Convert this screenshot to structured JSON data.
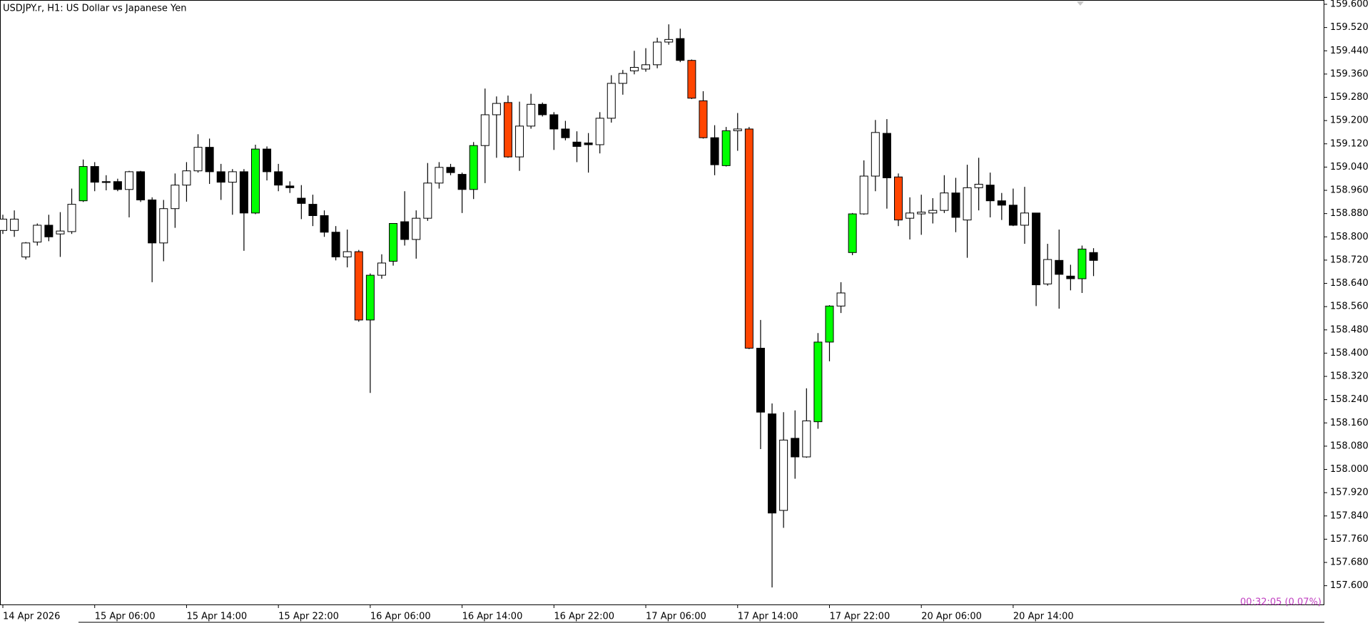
{
  "chart_data": {
    "type": "candlestick",
    "title": "USDJPY.r, H1:  US Dollar vs Japanese Yen",
    "annotation": "00:32:05 (0.07%)",
    "annotation_color": "#c040c0",
    "categories": [
      "14 Apr 2026",
      null,
      null,
      null,
      null,
      null,
      null,
      null,
      "15 Apr 06:00",
      null,
      null,
      null,
      null,
      null,
      null,
      null,
      "15 Apr 14:00",
      null,
      null,
      null,
      null,
      null,
      null,
      null,
      "15 Apr 22:00",
      null,
      null,
      null,
      null,
      null,
      null,
      null,
      "16 Apr 06:00",
      null,
      null,
      null,
      null,
      null,
      null,
      null,
      "16 Apr 14:00",
      null,
      null,
      null,
      null,
      null,
      null,
      null,
      "16 Apr 22:00",
      null,
      null,
      null,
      null,
      null,
      null,
      null,
      "17 Apr 06:00",
      null,
      null,
      null,
      null,
      null,
      null,
      null,
      "17 Apr 14:00",
      null,
      null,
      null,
      null,
      null,
      null,
      null,
      "17 Apr 22:00",
      null,
      null,
      null,
      null,
      null,
      null,
      null,
      "20 Apr 06:00",
      null,
      null,
      null,
      null,
      null,
      null,
      null,
      "20 Apr 14:00",
      null,
      null,
      null,
      null,
      null,
      null,
      null
    ],
    "open": [
      158.822,
      158.822,
      158.731,
      158.782,
      158.84,
      158.81,
      158.818,
      158.924,
      159.042,
      158.99,
      158.99,
      158.963,
      159.024,
      158.927,
      158.779,
      158.897,
      158.978,
      159.027,
      159.108,
      159.024,
      158.988,
      159.024,
      158.882,
      159.102,
      159.024,
      158.975,
      158.933,
      158.912,
      158.873,
      158.816,
      158.731,
      158.749,
      158.514,
      158.668,
      158.716,
      158.852,
      158.791,
      158.864,
      158.985,
      159.039,
      159.015,
      158.963,
      159.114,
      159.22,
      159.262,
      159.075,
      159.181,
      159.256,
      159.22,
      159.171,
      159.126,
      159.123,
      159.117,
      159.208,
      159.328,
      159.371,
      159.377,
      159.392,
      159.47,
      159.482,
      159.407,
      159.268,
      159.141,
      159.045,
      159.165,
      159.171,
      158.417,
      158.191,
      157.859,
      158.107,
      158.043,
      158.164,
      158.438,
      158.562,
      158.746,
      158.879,
      159.009,
      159.156,
      159.006,
      158.864,
      158.879,
      158.882,
      158.891,
      158.951,
      158.858,
      158.969,
      158.978,
      158.924,
      158.909,
      158.84,
      158.882,
      158.638,
      158.719,
      158.665,
      158.656,
      158.746
    ],
    "high": [
      158.876,
      158.891,
      158.782,
      158.846,
      158.876,
      158.885,
      158.966,
      159.066,
      159.057,
      159.012,
      159.0,
      159.027,
      159.027,
      158.936,
      158.927,
      159.018,
      159.057,
      159.153,
      159.138,
      159.051,
      159.033,
      159.033,
      159.117,
      159.111,
      159.051,
      158.991,
      158.978,
      158.945,
      158.891,
      158.837,
      158.825,
      158.755,
      158.674,
      158.74,
      158.846,
      158.957,
      158.891,
      159.054,
      159.057,
      159.051,
      159.021,
      159.126,
      159.31,
      159.283,
      159.286,
      159.265,
      159.292,
      159.262,
      159.229,
      159.199,
      159.163,
      159.157,
      159.229,
      159.356,
      159.374,
      159.44,
      159.449,
      159.485,
      159.531,
      159.516,
      159.41,
      159.301,
      159.184,
      159.178,
      159.226,
      159.178,
      158.514,
      158.227,
      158.197,
      158.203,
      158.279,
      158.469,
      158.565,
      158.644,
      158.882,
      159.063,
      159.202,
      159.205,
      159.018,
      158.936,
      158.945,
      158.933,
      159.012,
      159.003,
      159.048,
      159.072,
      159.021,
      158.951,
      158.966,
      158.972,
      158.882,
      158.776,
      158.825,
      158.704,
      158.77,
      158.761
    ],
    "low": [
      158.81,
      158.8,
      158.722,
      158.77,
      158.785,
      158.731,
      158.81,
      158.92,
      158.957,
      158.96,
      158.957,
      158.867,
      158.92,
      158.644,
      158.716,
      158.831,
      158.921,
      159.021,
      158.982,
      158.927,
      158.876,
      158.752,
      158.878,
      158.994,
      158.957,
      158.951,
      158.861,
      158.837,
      158.8,
      158.719,
      158.695,
      158.508,
      158.263,
      158.656,
      158.701,
      158.77,
      158.725,
      158.855,
      158.966,
      159.012,
      158.882,
      158.93,
      158.985,
      159.072,
      159.072,
      159.027,
      159.172,
      159.214,
      159.099,
      159.132,
      159.057,
      159.021,
      159.087,
      159.193,
      159.289,
      159.359,
      159.368,
      159.38,
      159.461,
      159.401,
      159.274,
      159.138,
      159.012,
      159.042,
      159.096,
      158.414,
      158.07,
      157.594,
      157.799,
      157.968,
      158.04,
      158.14,
      158.372,
      158.538,
      158.737,
      158.876,
      158.957,
      158.897,
      158.837,
      158.791,
      158.807,
      158.846,
      158.882,
      158.816,
      158.728,
      158.891,
      158.867,
      158.858,
      158.837,
      158.776,
      158.562,
      158.632,
      158.553,
      158.616,
      158.607,
      158.665
    ],
    "close": [
      158.861,
      158.861,
      158.779,
      158.84,
      158.8,
      158.82,
      158.912,
      159.042,
      158.988,
      158.987,
      158.963,
      159.024,
      158.927,
      158.779,
      158.897,
      158.978,
      159.027,
      159.108,
      159.024,
      158.988,
      159.024,
      158.882,
      159.102,
      159.024,
      158.978,
      158.969,
      158.915,
      158.873,
      158.816,
      158.731,
      158.749,
      158.514,
      158.668,
      158.71,
      158.846,
      158.791,
      158.864,
      158.985,
      159.039,
      159.021,
      158.963,
      159.114,
      159.22,
      159.259,
      159.075,
      159.181,
      159.256,
      159.22,
      159.171,
      159.141,
      159.111,
      159.117,
      159.208,
      159.328,
      159.362,
      159.383,
      159.392,
      159.47,
      159.479,
      159.407,
      159.277,
      159.141,
      159.048,
      159.165,
      159.171,
      158.417,
      158.197,
      157.85,
      158.101,
      158.043,
      158.167,
      158.438,
      158.562,
      158.607,
      158.879,
      159.009,
      159.159,
      159.003,
      158.858,
      158.882,
      158.885,
      158.891,
      158.951,
      158.867,
      158.969,
      158.981,
      158.924,
      158.909,
      158.84,
      158.882,
      158.635,
      158.722,
      158.671,
      158.656,
      158.758,
      158.719
    ],
    "colors": [
      "#ffffff",
      "#ffffff",
      "#ffffff",
      "#ffffff",
      "#000000",
      "#ffffff",
      "#ffffff",
      "#00ff00",
      "#000000",
      "#000000",
      "#000000",
      "#ffffff",
      "#000000",
      "#000000",
      "#ffffff",
      "#ffffff",
      "#ffffff",
      "#ffffff",
      "#000000",
      "#000000",
      "#ffffff",
      "#000000",
      "#00ff00",
      "#000000",
      "#000000",
      "#000000",
      "#000000",
      "#000000",
      "#000000",
      "#000000",
      "#ffffff",
      "#ff4500",
      "#00ff00",
      "#ffffff",
      "#00ff00",
      "#000000",
      "#ffffff",
      "#ffffff",
      "#ffffff",
      "#000000",
      "#000000",
      "#00ff00",
      "#ffffff",
      "#ffffff",
      "#ff4500",
      "#ffffff",
      "#ffffff",
      "#000000",
      "#000000",
      "#000000",
      "#000000",
      "#000000",
      "#ffffff",
      "#ffffff",
      "#ffffff",
      "#ffffff",
      "#ffffff",
      "#ffffff",
      "#ffffff",
      "#000000",
      "#ff4500",
      "#ff4500",
      "#000000",
      "#00ff00",
      "#ffffff",
      "#ff4500",
      "#000000",
      "#000000",
      "#ffffff",
      "#000000",
      "#ffffff",
      "#00ff00",
      "#00ff00",
      "#ffffff",
      "#00ff00",
      "#ffffff",
      "#ffffff",
      "#000000",
      "#ff4500",
      "#ffffff",
      "#ffffff",
      "#ffffff",
      "#ffffff",
      "#000000",
      "#ffffff",
      "#ffffff",
      "#000000",
      "#000000",
      "#000000",
      "#ffffff",
      "#000000",
      "#ffffff",
      "#000000",
      "#000000",
      "#00ff00",
      "#000000"
    ],
    "ylim": [
      157.533,
      159.6
    ],
    "yticks": [
      {
        "value": 159.6,
        "label": "159.600"
      },
      {
        "value": 159.52,
        "label": "159.520"
      },
      {
        "value": 159.44,
        "label": "159.440"
      },
      {
        "value": 159.36,
        "label": "159.360"
      },
      {
        "value": 159.28,
        "label": "159.280"
      },
      {
        "value": 159.2,
        "label": "159.200"
      },
      {
        "value": 159.12,
        "label": "159.120"
      },
      {
        "value": 159.04,
        "label": "159.040"
      },
      {
        "value": 158.96,
        "label": "158.960"
      },
      {
        "value": 158.88,
        "label": "158.880"
      },
      {
        "value": 158.8,
        "label": "158.800"
      },
      {
        "value": 158.72,
        "label": "158.720"
      },
      {
        "value": 158.64,
        "label": "158.640"
      },
      {
        "value": 158.56,
        "label": "158.560"
      },
      {
        "value": 158.48,
        "label": "158.480"
      },
      {
        "value": 158.4,
        "label": "158.400"
      },
      {
        "value": 158.32,
        "label": "158.320"
      },
      {
        "value": 158.24,
        "label": "158.240"
      },
      {
        "value": 158.16,
        "label": "158.160"
      },
      {
        "value": 158.08,
        "label": "158.080"
      },
      {
        "value": 158.0,
        "label": "158.000"
      },
      {
        "value": 157.92,
        "label": "157.920"
      },
      {
        "value": 157.84,
        "label": "157.840"
      },
      {
        "value": 157.76,
        "label": "157.760"
      },
      {
        "value": 157.68,
        "label": "157.680"
      },
      {
        "value": 157.6,
        "label": "157.600"
      }
    ],
    "grid": false
  }
}
